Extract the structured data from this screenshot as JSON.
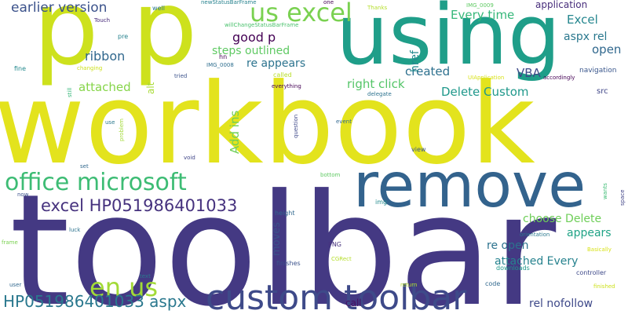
{
  "cloud": {
    "words": [
      {
        "text": "workbook",
        "color": "#e3e31d"
      },
      {
        "text": "toolbar",
        "color": "#443983"
      },
      {
        "text": "using",
        "color": "#1f9e89"
      },
      {
        "text": "p p",
        "color": "#cde11d"
      },
      {
        "text": "remove",
        "color": "#33638d"
      },
      {
        "text": "custom toolbar",
        "color": "#3e4a89"
      },
      {
        "text": "us excel",
        "color": "#7ad151"
      },
      {
        "text": "office microsoft",
        "color": "#3dbc74"
      },
      {
        "text": "excel HP051986401033",
        "color": "#46327e"
      },
      {
        "text": "en us",
        "color": "#a2da37"
      },
      {
        "text": "HP051986401033 aspx",
        "color": "#2a788e"
      },
      {
        "text": "earlier version",
        "color": "#3b528b"
      },
      {
        "text": "good p",
        "color": "#440154"
      },
      {
        "text": "ribbon",
        "color": "#31688e"
      },
      {
        "text": "steps outlined",
        "color": "#5ec962"
      },
      {
        "text": "re appears",
        "color": "#2c738e"
      },
      {
        "text": "attached",
        "color": "#86d549"
      },
      {
        "text": "right click",
        "color": "#54c568"
      },
      {
        "text": "Delete Custom",
        "color": "#1f988b"
      },
      {
        "text": "created",
        "color": "#2d708e"
      },
      {
        "text": "Every time",
        "color": "#35b779"
      },
      {
        "text": "Excel",
        "color": "#24868e"
      },
      {
        "text": "aspx rel",
        "color": "#2a788e"
      },
      {
        "text": "open",
        "color": "#31688e"
      },
      {
        "text": "VBA",
        "color": "#3e4989"
      },
      {
        "text": "href",
        "color": "#23898e"
      },
      {
        "text": "application",
        "color": "#472d7b"
      },
      {
        "text": "choose Delete",
        "color": "#6ece58"
      },
      {
        "text": "appears",
        "color": "#20a386"
      },
      {
        "text": "re open",
        "color": "#2c728e"
      },
      {
        "text": "attached Every",
        "color": "#26828e"
      },
      {
        "text": "rel nofollow",
        "color": "#3e4989"
      },
      {
        "text": "Add ins",
        "color": "#6ece58"
      },
      {
        "text": "moves",
        "color": "#3b528b"
      },
      {
        "text": "call",
        "color": "#471063"
      },
      {
        "text": "alt",
        "color": "#a8db34"
      },
      {
        "text": "navigation",
        "color": "#39568c"
      },
      {
        "text": "src",
        "color": "#404688"
      },
      {
        "text": "well",
        "color": "#2a788e"
      },
      {
        "text": "newStatusBarFrame",
        "color": "#26828e"
      },
      {
        "text": "willChangeStatusBarFrame",
        "color": "#4ac16d"
      },
      {
        "text": "one",
        "color": "#440154"
      },
      {
        "text": "Thanks",
        "color": "#b5de2b"
      },
      {
        "text": "IMG_0009",
        "color": "#5ec962"
      },
      {
        "text": "Touch",
        "color": "#472a7a"
      },
      {
        "text": "pre",
        "color": "#26828e"
      },
      {
        "text": "hn",
        "color": "#440154"
      },
      {
        "text": "IMG_0008",
        "color": "#2e6e8e"
      },
      {
        "text": "fine",
        "color": "#23898e"
      },
      {
        "text": "changing",
        "color": "#cde11d"
      },
      {
        "text": "tried",
        "color": "#3b528b"
      },
      {
        "text": "called",
        "color": "#b8de29"
      },
      {
        "text": "everything",
        "color": "#440154"
      },
      {
        "text": "accordingly",
        "color": "#440154"
      },
      {
        "text": "UIApplication",
        "color": "#d8e219"
      },
      {
        "text": "delegate",
        "color": "#2c728e"
      },
      {
        "text": "still",
        "color": "#35b779"
      },
      {
        "text": "use",
        "color": "#2a788e"
      },
      {
        "text": "problem",
        "color": "#a2da37"
      },
      {
        "text": "question",
        "color": "#3e4989"
      },
      {
        "text": "event",
        "color": "#31688e"
      },
      {
        "text": "void",
        "color": "#404688"
      },
      {
        "text": "set",
        "color": "#31688e"
      },
      {
        "text": "view",
        "color": "#39568c"
      },
      {
        "text": "bottom",
        "color": "#5ec962"
      },
      {
        "text": "now",
        "color": "#3b528b"
      },
      {
        "text": "img",
        "color": "#238a8d"
      },
      {
        "text": "height",
        "color": "#31688e"
      },
      {
        "text": "wants",
        "color": "#3dbc74"
      },
      {
        "text": "space",
        "color": "#414487"
      },
      {
        "text": "luck",
        "color": "#2c728e"
      },
      {
        "text": "frame",
        "color": "#7ad151"
      },
      {
        "text": "orientation",
        "color": "#2a788e"
      },
      {
        "text": "Basically",
        "color": "#d8e219"
      },
      {
        "text": "PNG",
        "color": "#46327e"
      },
      {
        "text": "CGRect",
        "color": "#b5de2b"
      },
      {
        "text": "finishes",
        "color": "#3b528b"
      },
      {
        "text": "downloads",
        "color": "#1f988b"
      },
      {
        "text": "controller",
        "color": "#3e4989"
      },
      {
        "text": "text",
        "color": "#2a788e"
      },
      {
        "text": "user",
        "color": "#31688e"
      },
      {
        "text": "code",
        "color": "#31688e"
      },
      {
        "text": "return",
        "color": "#b5de2b"
      },
      {
        "text": "finished",
        "color": "#cde11d"
      }
    ]
  }
}
